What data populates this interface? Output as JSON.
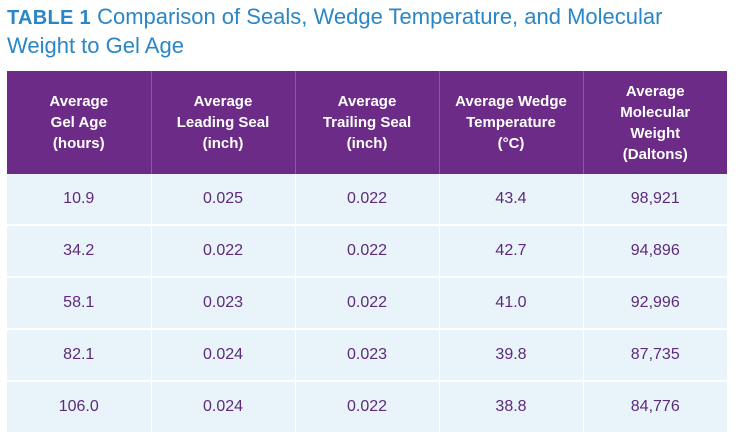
{
  "caption": {
    "label": "TABLE 1",
    "title": "Comparison of Seals, Wedge Temperature, and Molecular Weight to Gel Age"
  },
  "table": {
    "headers": [
      [
        "Average",
        "Gel Age",
        "(hours)"
      ],
      [
        "Average",
        "Leading Seal",
        "(inch)"
      ],
      [
        "Average",
        "Trailing Seal",
        "(inch)"
      ],
      [
        "Average Wedge",
        "Temperature",
        "(°C)"
      ],
      [
        "Average",
        "Molecular",
        "Weight",
        "(Daltons)"
      ]
    ],
    "rows": [
      [
        "10.9",
        "0.025",
        "0.022",
        "43.4",
        "98,921"
      ],
      [
        "34.2",
        "0.022",
        "0.022",
        "42.7",
        "94,896"
      ],
      [
        "58.1",
        "0.023",
        "0.022",
        "41.0",
        "92,996"
      ],
      [
        "82.1",
        "0.024",
        "0.023",
        "39.8",
        "87,735"
      ],
      [
        "106.0",
        "0.024",
        "0.022",
        "38.8",
        "84,776"
      ]
    ]
  },
  "colors": {
    "header_bg": "#6c2b86",
    "cell_bg": "#e8f4f9",
    "caption": "#2a86c6",
    "cell_text": "#5d2a7a"
  }
}
